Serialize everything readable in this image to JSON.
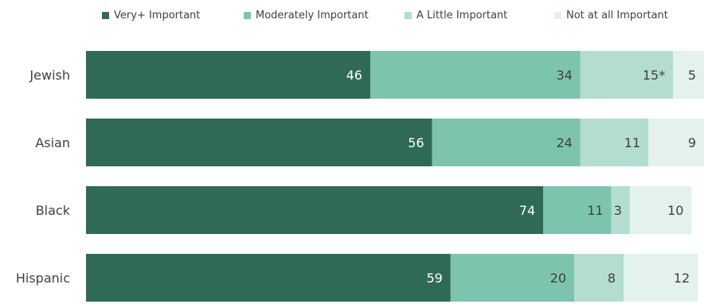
{
  "chart_data": {
    "type": "bar",
    "orientation": "horizontal",
    "stacked": true,
    "title": "",
    "xlabel": "",
    "ylabel": "",
    "xlim": [
      0,
      100
    ],
    "grid": false,
    "legend_position": "top",
    "categories": [
      "Jewish",
      "Asian",
      "Black",
      "Hispanic"
    ],
    "series": [
      {
        "name": "Very+ Important",
        "values": [
          46,
          56,
          74,
          59
        ],
        "labels": [
          "46",
          "56",
          "74",
          "59"
        ],
        "color": "#2e6a55",
        "label_color": "#ffffff"
      },
      {
        "name": "Moderately Important",
        "values": [
          34,
          24,
          11,
          20
        ],
        "labels": [
          "34",
          "24",
          "11",
          "20"
        ],
        "color": "#7dc4ae",
        "label_color": "#404040"
      },
      {
        "name": "A Little Important",
        "values": [
          15,
          11,
          3,
          8
        ],
        "labels": [
          "15*",
          "11",
          "3",
          "8"
        ],
        "color": "#b3ddd0",
        "label_color": "#404040"
      },
      {
        "name": "Not at all Important",
        "values": [
          5,
          9,
          10,
          12
        ],
        "labels": [
          "5",
          "9",
          "10",
          "12"
        ],
        "color": "#e3f2ed",
        "label_color": "#404040"
      }
    ]
  }
}
